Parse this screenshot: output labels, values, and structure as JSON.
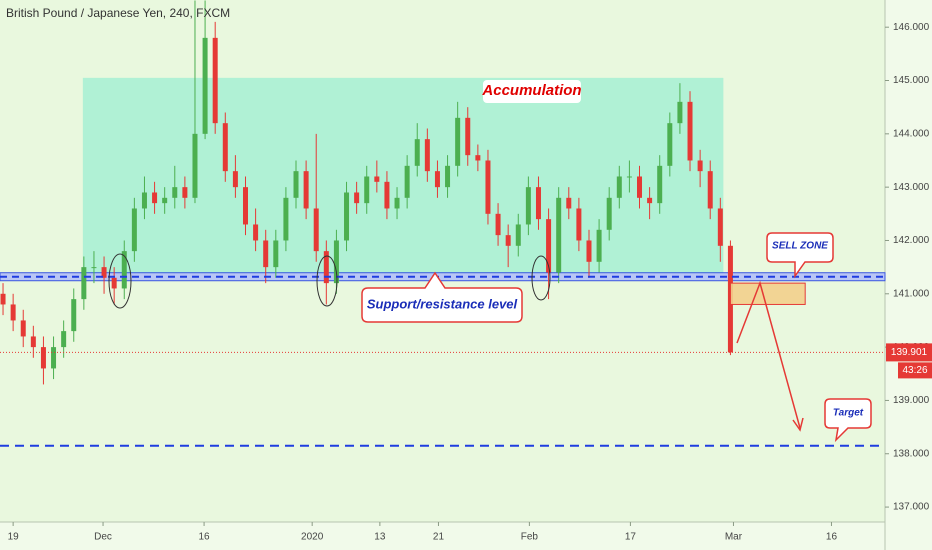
{
  "chart_data": {
    "type": "candlestick",
    "title": "British Pound / Japanese Yen, 240, FXCM",
    "up_color": "#4caf50",
    "down_color": "#e53935",
    "x": [
      -1,
      0,
      1,
      2,
      3,
      4,
      5,
      6,
      7,
      8,
      9,
      10,
      11,
      12,
      13,
      14,
      15,
      16,
      17,
      18,
      19,
      20,
      21,
      22,
      23,
      24,
      25,
      26,
      27,
      28,
      29,
      30,
      31,
      32,
      33,
      34,
      35,
      36,
      37,
      38,
      39,
      40,
      41,
      42,
      43,
      44,
      45,
      46,
      47,
      48,
      49,
      50,
      51,
      52,
      53,
      54,
      55,
      56,
      57,
      58,
      59,
      60,
      61,
      62,
      63,
      64,
      65,
      66,
      67,
      68,
      69,
      70,
      71
    ],
    "open": [
      141.0,
      140.8,
      140.5,
      140.2,
      140.0,
      139.6,
      140.0,
      140.3,
      140.9,
      141.5,
      141.5,
      141.3,
      141.1,
      141.8,
      142.6,
      142.9,
      142.7,
      142.8,
      143.0,
      142.8,
      144.0,
      145.8,
      144.2,
      143.3,
      143.0,
      142.3,
      142.0,
      141.5,
      142.0,
      142.8,
      143.3,
      142.6,
      141.8,
      141.2,
      142.0,
      142.9,
      142.7,
      143.2,
      143.1,
      142.6,
      142.8,
      143.4,
      143.9,
      143.3,
      143.0,
      143.4,
      144.3,
      143.6,
      143.5,
      142.5,
      142.1,
      141.9,
      142.3,
      143.0,
      142.4,
      141.4,
      142.8,
      142.6,
      142.0,
      141.6,
      142.2,
      142.8,
      143.2,
      143.2,
      142.8,
      142.7,
      143.4,
      144.2,
      144.6,
      143.5,
      143.3,
      142.6,
      141.9
    ],
    "high": [
      141.2,
      141.0,
      140.7,
      140.4,
      140.2,
      140.2,
      140.5,
      141.1,
      141.7,
      141.8,
      141.7,
      141.5,
      142.0,
      142.8,
      143.2,
      143.1,
      143.0,
      143.4,
      143.2,
      146.5,
      146.5,
      146.1,
      144.4,
      143.6,
      143.2,
      142.6,
      142.2,
      142.2,
      143.0,
      143.5,
      143.5,
      144.0,
      142.0,
      142.2,
      143.1,
      143.1,
      143.4,
      143.5,
      143.3,
      143.0,
      143.6,
      144.2,
      144.1,
      143.5,
      143.6,
      144.6,
      144.5,
      143.8,
      143.7,
      142.7,
      142.3,
      142.5,
      143.2,
      143.2,
      142.6,
      143.0,
      143.0,
      142.8,
      142.2,
      142.4,
      143.0,
      143.4,
      143.5,
      143.4,
      143.0,
      143.6,
      144.4,
      144.95,
      144.8,
      143.7,
      143.5,
      142.8,
      142.0
    ],
    "low": [
      140.6,
      140.3,
      140.0,
      139.8,
      139.3,
      139.4,
      139.8,
      140.1,
      140.7,
      141.2,
      141.0,
      140.8,
      140.9,
      141.6,
      142.4,
      142.5,
      142.5,
      142.6,
      142.6,
      142.7,
      143.9,
      144.0,
      143.1,
      142.8,
      142.1,
      141.8,
      141.2,
      141.3,
      141.8,
      142.6,
      142.4,
      141.6,
      140.8,
      141.0,
      141.8,
      142.5,
      142.5,
      142.9,
      142.4,
      142.4,
      142.6,
      143.2,
      143.1,
      142.8,
      142.8,
      143.2,
      143.4,
      143.3,
      142.3,
      141.9,
      141.5,
      141.7,
      142.1,
      142.2,
      140.9,
      141.2,
      142.4,
      141.8,
      141.3,
      141.4,
      142.0,
      142.6,
      142.9,
      142.6,
      142.4,
      142.5,
      143.2,
      144.0,
      143.3,
      143.0,
      142.4,
      141.6,
      139.85
    ],
    "close": [
      140.8,
      140.5,
      140.2,
      140.0,
      139.6,
      140.0,
      140.3,
      140.9,
      141.5,
      141.5,
      141.3,
      141.1,
      141.8,
      142.6,
      142.9,
      142.7,
      142.8,
      143.0,
      142.8,
      144.0,
      145.8,
      144.2,
      143.3,
      143.0,
      142.3,
      142.0,
      141.5,
      142.0,
      142.8,
      143.3,
      142.6,
      141.8,
      141.2,
      142.0,
      142.9,
      142.7,
      143.2,
      143.1,
      142.6,
      142.8,
      143.4,
      143.9,
      143.3,
      143.0,
      143.4,
      144.3,
      143.6,
      143.5,
      142.5,
      142.1,
      141.9,
      142.3,
      143.0,
      142.4,
      141.4,
      142.8,
      142.6,
      142.0,
      141.6,
      142.2,
      142.8,
      143.2,
      143.2,
      142.8,
      142.7,
      143.4,
      144.2,
      144.6,
      143.5,
      143.3,
      142.6,
      141.9,
      139.901
    ],
    "countdown": "43:26",
    "xlim": [
      -1.3,
      86.3
    ],
    "ylim": [
      136.72,
      146.51
    ],
    "xticks": [
      {
        "value": 0,
        "label": "19"
      },
      {
        "value": 8.9,
        "label": "Dec"
      },
      {
        "value": 18.9,
        "label": "16"
      },
      {
        "value": 29.6,
        "label": "2020"
      },
      {
        "value": 36.3,
        "label": "13"
      },
      {
        "value": 42.1,
        "label": "21"
      },
      {
        "value": 51.1,
        "label": "Feb"
      },
      {
        "value": 61.1,
        "label": "17"
      },
      {
        "value": 71.3,
        "label": "Mar"
      },
      {
        "value": 81,
        "label": "16"
      }
    ],
    "yticks": [
      {
        "value": 137,
        "label": "137.000"
      },
      {
        "value": 138,
        "label": "138.000"
      },
      {
        "value": 139,
        "label": "139.000"
      },
      {
        "value": 140,
        "label": "140.000"
      },
      {
        "value": 141,
        "label": "141.000"
      },
      {
        "value": 142,
        "label": "142.000"
      },
      {
        "value": 143,
        "label": "143.000"
      },
      {
        "value": 144,
        "label": "144.000"
      },
      {
        "value": 145,
        "label": "145.000"
      },
      {
        "value": 146,
        "label": "146.000"
      }
    ],
    "support_level": 141.32,
    "target_level": 138.15,
    "accumulation_zone": {
      "x": [
        6.9,
        70.3
      ],
      "y": [
        141.3,
        145.05
      ]
    },
    "sell_zone": {
      "x": [
        71,
        78.4
      ],
      "y": [
        140.8,
        141.2
      ]
    },
    "annotations": {
      "accumulation": "Accumulation",
      "support": "Support/resistance level",
      "sell_zone": "SELL ZONE",
      "target": "Target"
    }
  }
}
